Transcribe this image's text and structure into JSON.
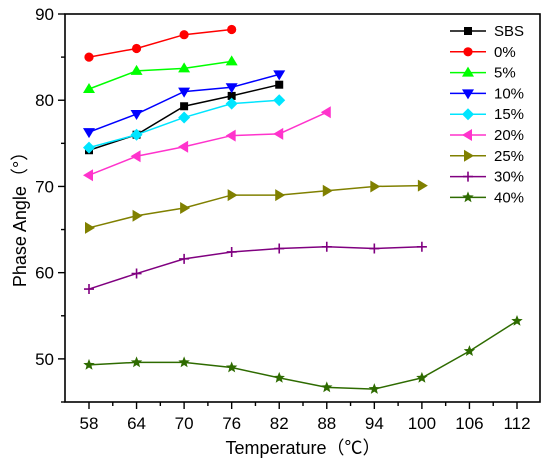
{
  "chart_data": {
    "type": "line",
    "title": "",
    "xlabel": "Temperature（℃）",
    "ylabel": "Phase Angle（°）",
    "categories": [
      58,
      64,
      70,
      76,
      82,
      88,
      94,
      100,
      106,
      112
    ],
    "ylim": [
      45,
      90
    ],
    "yticks": [
      50,
      60,
      70,
      80,
      90
    ],
    "grid": false,
    "legend_position": "top-right",
    "series": [
      {
        "name": "SBS",
        "color": "#000000",
        "marker": "square",
        "values": [
          74.2,
          76.0,
          79.3,
          80.5,
          81.8,
          null,
          null,
          null,
          null,
          null
        ]
      },
      {
        "name": "0%",
        "color": "#ff0000",
        "marker": "circle",
        "values": [
          85.0,
          86.0,
          87.6,
          88.2,
          null,
          null,
          null,
          null,
          null,
          null
        ]
      },
      {
        "name": "5%",
        "color": "#00ff00",
        "marker": "triangle-up",
        "values": [
          81.3,
          83.4,
          83.7,
          84.5,
          null,
          null,
          null,
          null,
          null,
          null
        ]
      },
      {
        "name": "10%",
        "color": "#0000ff",
        "marker": "triangle-down",
        "values": [
          76.3,
          78.4,
          81.0,
          81.5,
          83.0,
          null,
          null,
          null,
          null,
          null
        ]
      },
      {
        "name": "15%",
        "color": "#00e5ff",
        "marker": "diamond",
        "values": [
          74.5,
          76.0,
          78.0,
          79.6,
          80.0,
          null,
          null,
          null,
          null,
          null
        ]
      },
      {
        "name": "20%",
        "color": "#ff33cc",
        "marker": "triangle-left",
        "values": [
          71.3,
          73.5,
          74.6,
          75.9,
          76.1,
          78.6,
          null,
          null,
          null,
          null
        ]
      },
      {
        "name": "25%",
        "color": "#808000",
        "marker": "triangle-right",
        "values": [
          65.2,
          66.6,
          67.5,
          69.0,
          69.0,
          69.5,
          70.0,
          70.1,
          null,
          null
        ]
      },
      {
        "name": "30%",
        "color": "#800080",
        "marker": "plus",
        "values": [
          58.1,
          59.9,
          61.6,
          62.4,
          62.8,
          63.0,
          62.8,
          63.0,
          null,
          null
        ]
      },
      {
        "name": "40%",
        "color": "#2e6b00",
        "marker": "star",
        "values": [
          49.3,
          49.6,
          49.6,
          49.0,
          47.8,
          46.7,
          46.5,
          47.8,
          50.9,
          54.4
        ]
      }
    ]
  }
}
